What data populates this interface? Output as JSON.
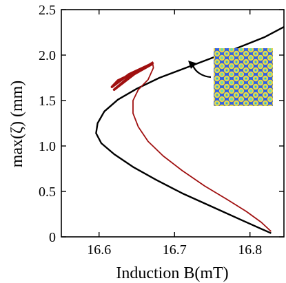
{
  "chart_data": {
    "type": "line",
    "xlabel": "Induction B(mT)",
    "ylabel": "max(ζ) (mm)",
    "xlim": [
      16.55,
      16.845
    ],
    "ylim": [
      0,
      2.5
    ],
    "xticks": [
      16.6,
      16.7,
      16.8
    ],
    "xtick_labels": [
      "16.6",
      "16.7",
      "16.8"
    ],
    "yticks": [
      0,
      0.5,
      1.0,
      1.5,
      2.0,
      2.5
    ],
    "ytick_labels": [
      "0",
      "0.5",
      "1.0",
      "1.5",
      "2.0",
      "2.5"
    ],
    "grid": false,
    "series": [
      {
        "color": "#000000",
        "points": [
          [
            16.828,
            0.04
          ],
          [
            16.79,
            0.18
          ],
          [
            16.75,
            0.33
          ],
          [
            16.71,
            0.48
          ],
          [
            16.675,
            0.63
          ],
          [
            16.645,
            0.77
          ],
          [
            16.62,
            0.91
          ],
          [
            16.603,
            1.03
          ],
          [
            16.596,
            1.14
          ],
          [
            16.598,
            1.25
          ],
          [
            16.607,
            1.38
          ],
          [
            16.625,
            1.51
          ],
          [
            16.65,
            1.63
          ],
          [
            16.68,
            1.75
          ],
          [
            16.715,
            1.86
          ],
          [
            16.75,
            1.97
          ],
          [
            16.79,
            2.1
          ],
          [
            16.82,
            2.2
          ],
          [
            16.845,
            2.31
          ]
        ]
      },
      {
        "color": "#a01010",
        "points": [
          [
            16.828,
            0.06
          ],
          [
            16.815,
            0.16
          ],
          [
            16.795,
            0.28
          ],
          [
            16.77,
            0.41
          ],
          [
            16.74,
            0.56
          ],
          [
            16.71,
            0.73
          ],
          [
            16.685,
            0.89
          ],
          [
            16.665,
            1.05
          ],
          [
            16.652,
            1.21
          ],
          [
            16.645,
            1.36
          ],
          [
            16.645,
            1.5
          ],
          [
            16.652,
            1.62
          ],
          [
            16.665,
            1.73
          ],
          [
            16.672,
            1.86
          ],
          [
            16.671,
            1.91
          ]
        ]
      }
    ]
  },
  "annotation": {
    "pattern_colors": {
      "background": "#2f5fe8",
      "ring": "#f2d640",
      "center": "#6fd9a8"
    }
  }
}
